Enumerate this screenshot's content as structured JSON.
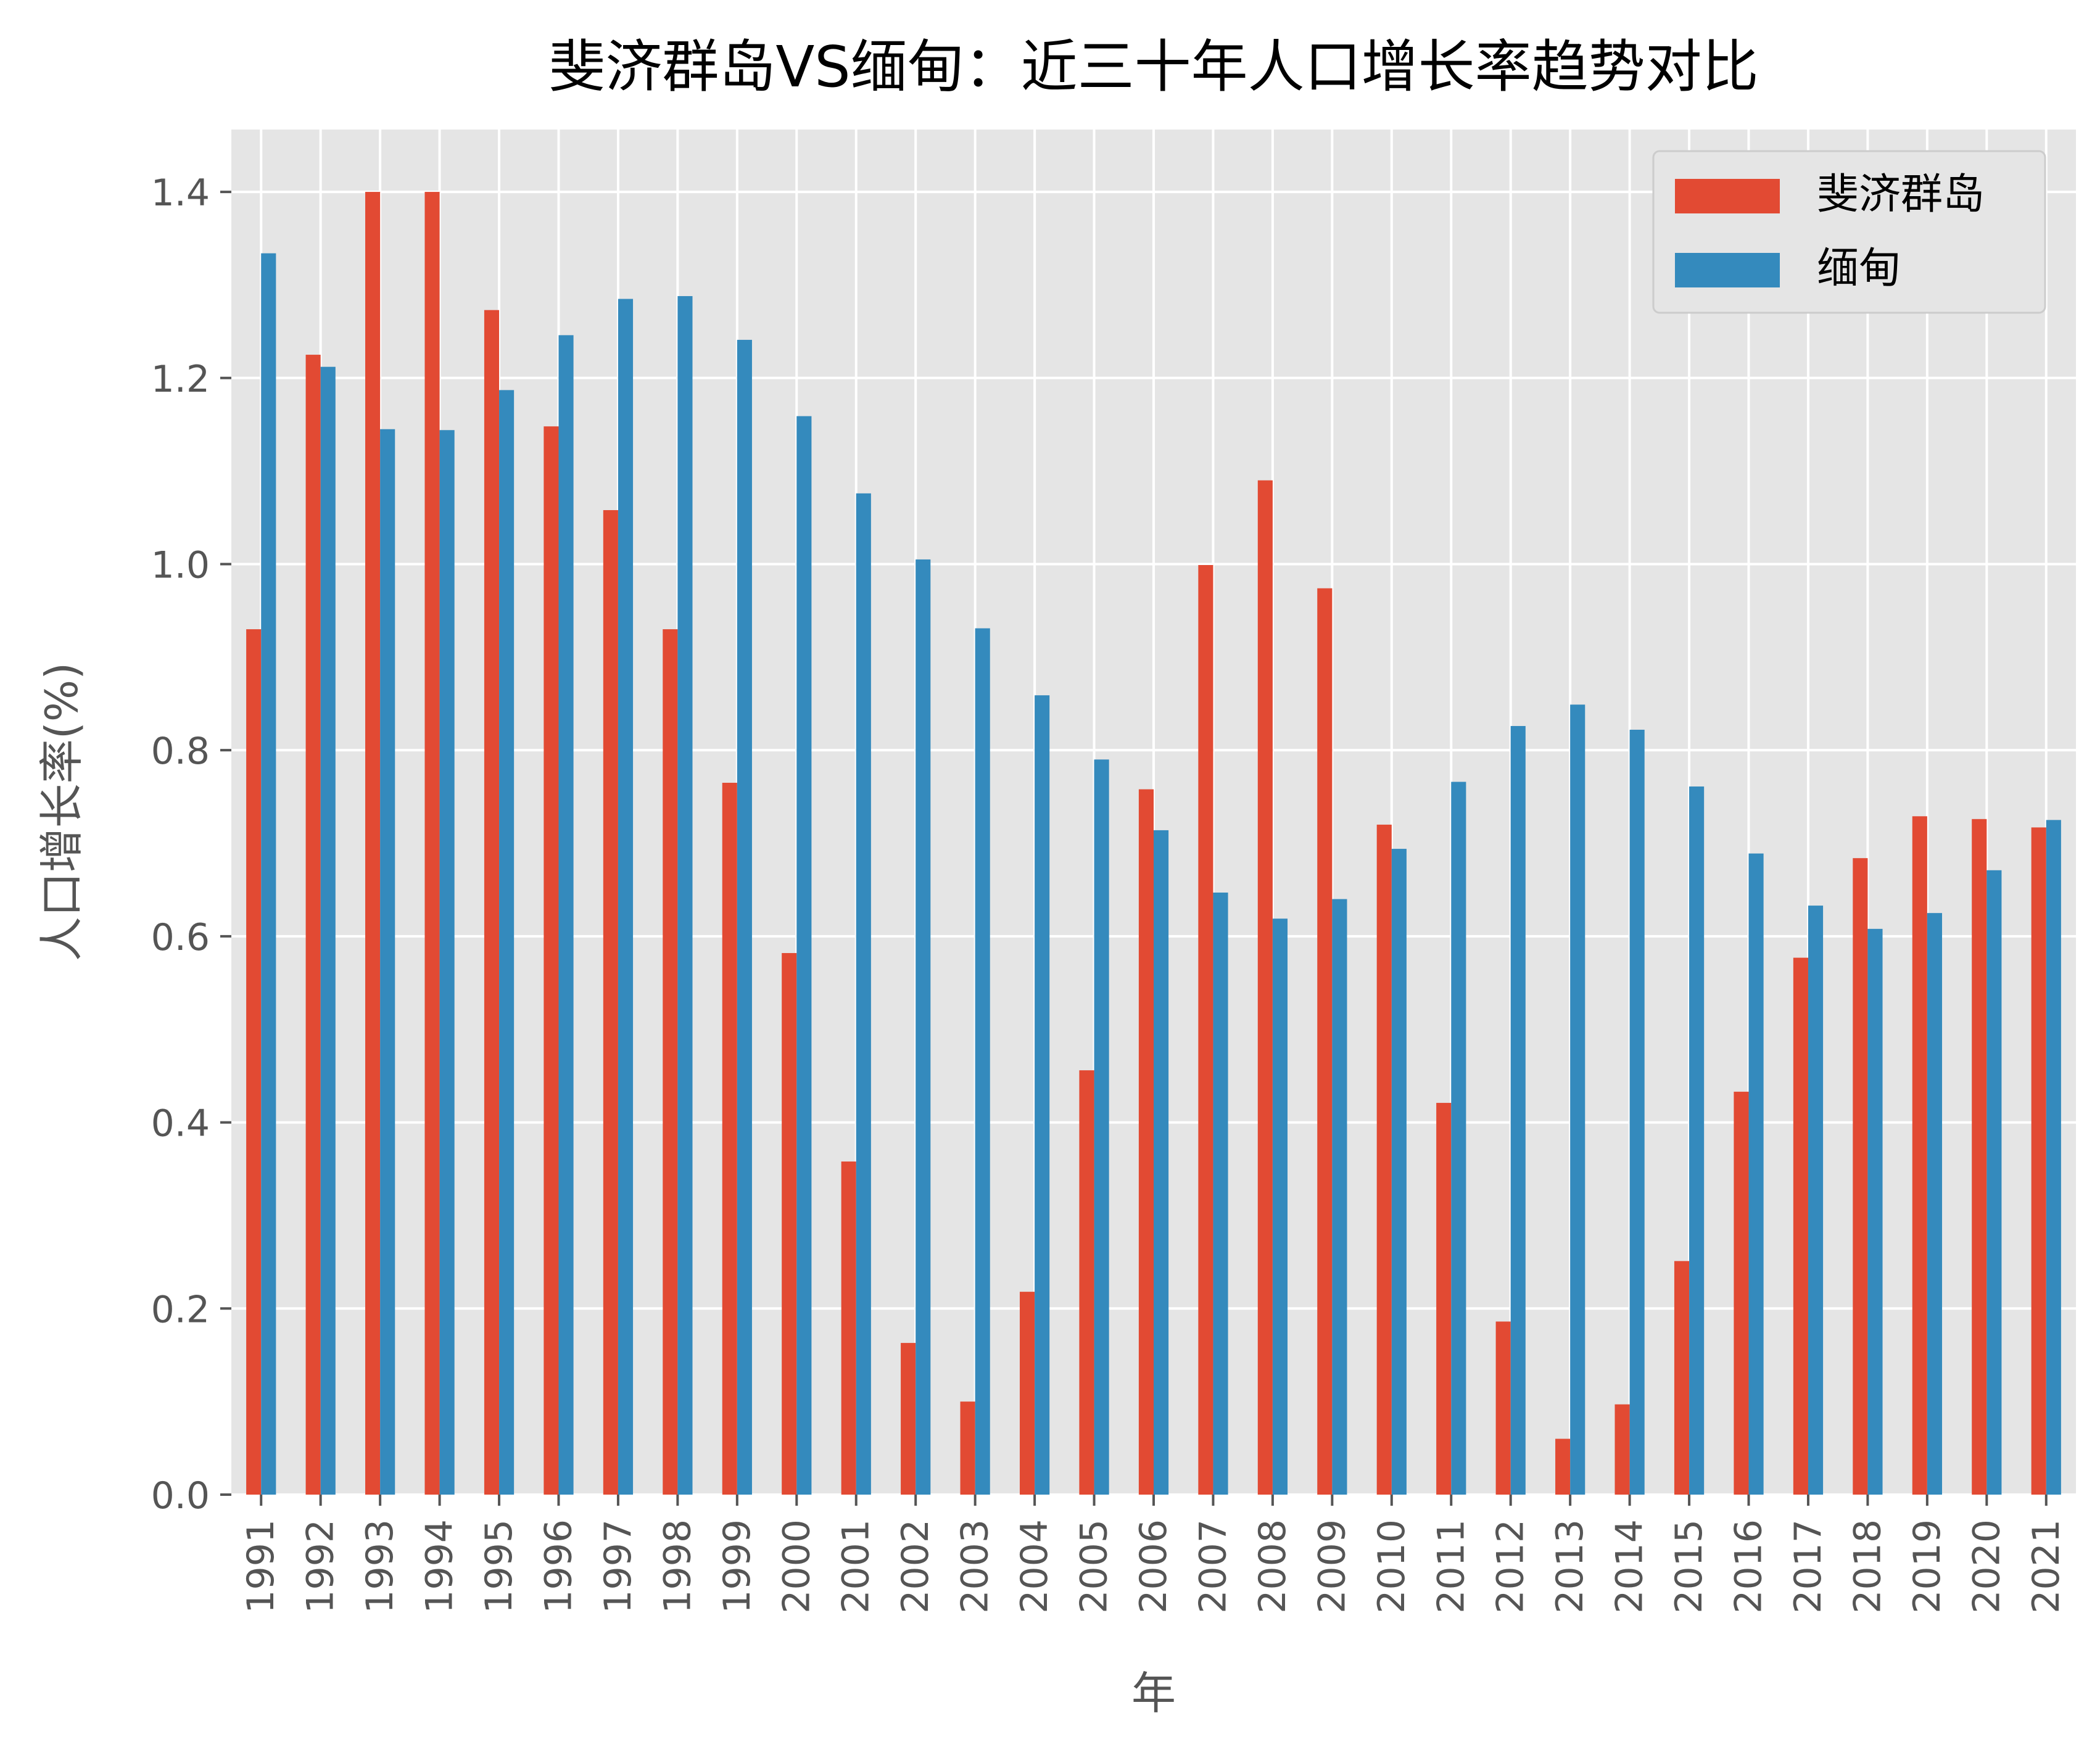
{
  "chart_data": {
    "type": "bar",
    "title": "斐济群岛VS缅甸：近三十年人口增长率趋势对比",
    "xlabel": "年",
    "ylabel": "人口增长率(%)",
    "categories": [
      "1991",
      "1992",
      "1993",
      "1994",
      "1995",
      "1996",
      "1997",
      "1998",
      "1999",
      "2000",
      "2001",
      "2002",
      "2003",
      "2004",
      "2005",
      "2006",
      "2007",
      "2008",
      "2009",
      "2010",
      "2011",
      "2012",
      "2013",
      "2014",
      "2015",
      "2016",
      "2017",
      "2018",
      "2019",
      "2020",
      "2021"
    ],
    "series": [
      {
        "name": "斐济群岛",
        "color": "#E24A33",
        "values": [
          0.93,
          1.225,
          1.4,
          1.4,
          1.273,
          1.148,
          1.058,
          0.93,
          0.765,
          0.582,
          0.358,
          0.163,
          0.1,
          0.218,
          0.456,
          0.758,
          0.999,
          1.09,
          0.974,
          0.72,
          0.421,
          0.186,
          0.06,
          0.097,
          0.251,
          0.433,
          0.577,
          0.684,
          0.729,
          0.726,
          0.717
        ]
      },
      {
        "name": "缅甸",
        "color": "#348ABD",
        "values": [
          1.334,
          1.212,
          1.145,
          1.144,
          1.187,
          1.246,
          1.285,
          1.288,
          1.241,
          1.159,
          1.076,
          1.005,
          0.931,
          0.859,
          0.79,
          0.714,
          0.647,
          0.619,
          0.64,
          0.694,
          0.766,
          0.826,
          0.849,
          0.822,
          0.761,
          0.689,
          0.633,
          0.608,
          0.625,
          0.671,
          0.725
        ]
      }
    ],
    "ylim": [
      0,
      1.467
    ],
    "yticks": [
      "0.0",
      "0.2",
      "0.4",
      "0.6",
      "0.8",
      "1.0",
      "1.2",
      "1.4"
    ],
    "ytick_values": [
      0,
      0.2,
      0.4,
      0.6,
      0.8,
      1.0,
      1.2,
      1.4
    ],
    "grid": true,
    "legend_position": "top-right",
    "style": {
      "background": "#E5E5E5",
      "grid_color": "#FFFFFF",
      "text_color": "#555555",
      "title_color": "#000000"
    }
  }
}
